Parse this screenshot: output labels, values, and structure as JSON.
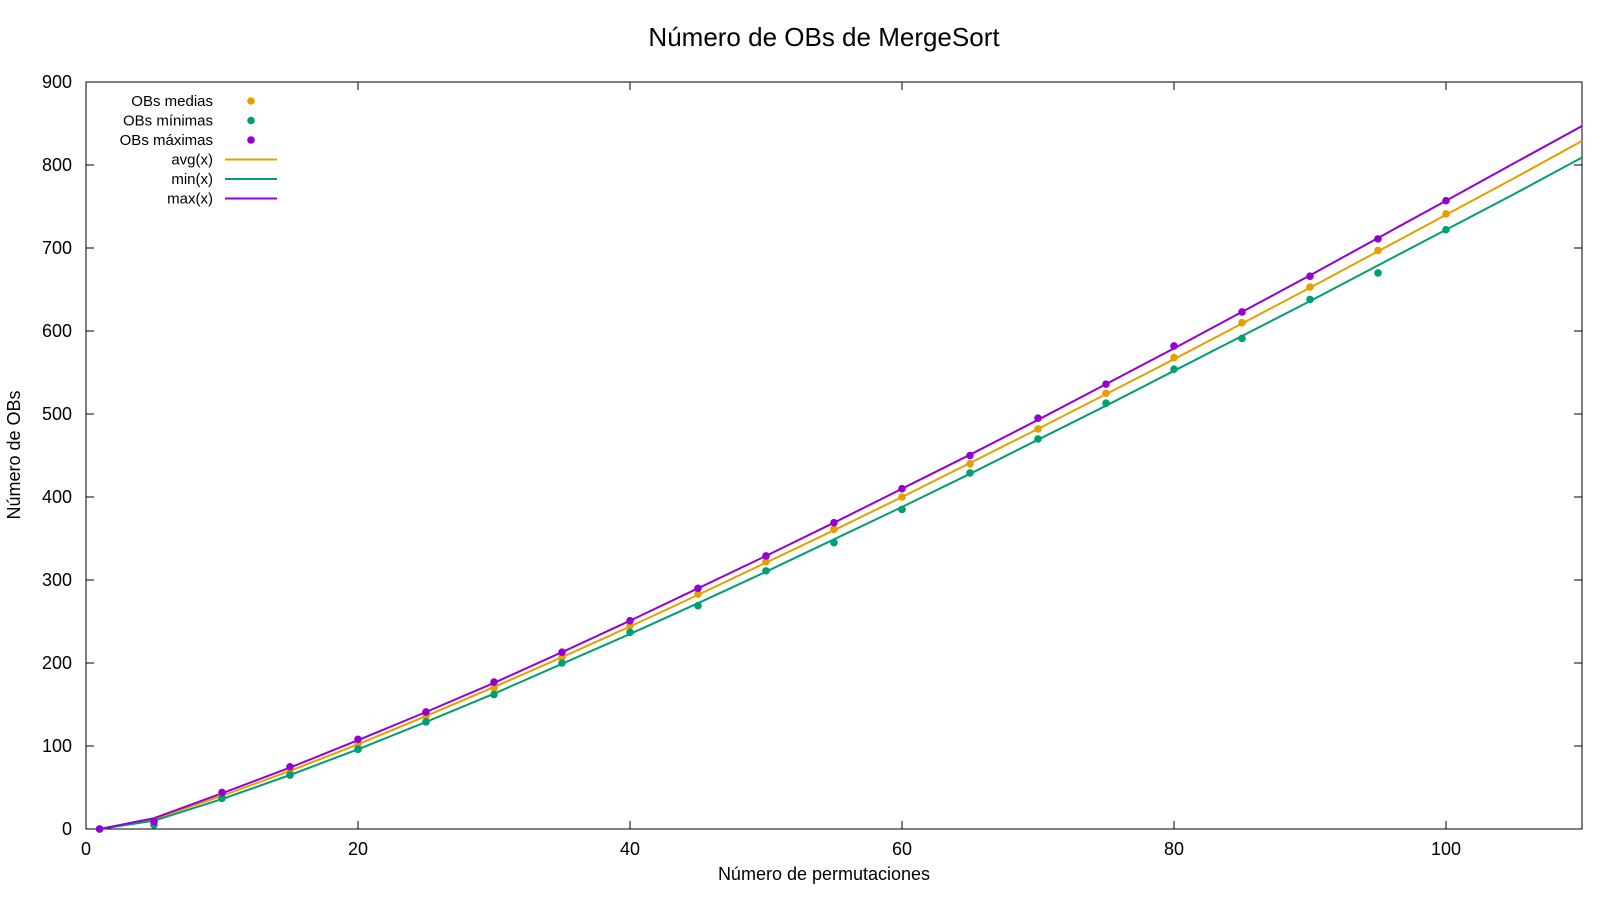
{
  "chart_data": {
    "type": "scatter",
    "title": "Número de OBs de MergeSort",
    "xlabel": "Número de permutaciones",
    "ylabel": "Número de OBs",
    "xlim": [
      0,
      110
    ],
    "ylim": [
      0,
      900
    ],
    "xticks": [
      0,
      20,
      40,
      60,
      80,
      100
    ],
    "yticks": [
      0,
      100,
      200,
      300,
      400,
      500,
      600,
      700,
      800,
      900
    ],
    "grid": false,
    "legend_position": "top-left",
    "x": [
      1,
      5,
      10,
      15,
      20,
      25,
      30,
      35,
      40,
      45,
      50,
      55,
      60,
      65,
      70,
      75,
      80,
      85,
      90,
      95,
      100
    ],
    "series": [
      {
        "name": "OBs medias",
        "kind": "points",
        "color": "#e69f00",
        "values": [
          0,
          8,
          41,
          70,
          102,
          136,
          170,
          207,
          245,
          283,
          322,
          361,
          400,
          440,
          482,
          525,
          568,
          610,
          653,
          697,
          741
        ]
      },
      {
        "name": "OBs mínimas",
        "kind": "points",
        "color": "#009e73",
        "values": [
          0,
          5,
          37,
          65,
          96,
          129,
          162,
          200,
          237,
          269,
          311,
          345,
          385,
          429,
          470,
          513,
          554,
          591,
          638,
          670,
          722
        ]
      },
      {
        "name": "OBs máximas",
        "kind": "points",
        "color": "#9400d3",
        "values": [
          0,
          9,
          44,
          75,
          108,
          141,
          177,
          213,
          251,
          290,
          329,
          369,
          410,
          450,
          495,
          536,
          582,
          623,
          666,
          711,
          757
        ]
      },
      {
        "name": "avg(x)",
        "kind": "line",
        "color": "#e69f00",
        "x": [
          1,
          5,
          10,
          15,
          20,
          25,
          30,
          35,
          40,
          45,
          50,
          55,
          60,
          65,
          70,
          75,
          80,
          85,
          90,
          95,
          100,
          105,
          110
        ],
        "values": [
          0,
          12,
          40,
          70,
          102,
          136,
          171,
          207,
          244,
          282,
          321,
          360,
          400,
          441,
          482,
          524,
          566,
          609,
          652,
          696,
          740,
          784,
          829
        ]
      },
      {
        "name": "min(x)",
        "kind": "line",
        "color": "#009e73",
        "x": [
          1,
          5,
          10,
          15,
          20,
          25,
          30,
          35,
          40,
          45,
          50,
          55,
          60,
          65,
          70,
          75,
          80,
          85,
          90,
          95,
          100,
          105,
          110
        ],
        "values": [
          0,
          10,
          36,
          65,
          96,
          129,
          163,
          199,
          235,
          272,
          310,
          349,
          388,
          428,
          469,
          510,
          552,
          594,
          636,
          679,
          722,
          765,
          809
        ]
      },
      {
        "name": "max(x)",
        "kind": "line",
        "color": "#9400d3",
        "x": [
          1,
          5,
          10,
          15,
          20,
          25,
          30,
          35,
          40,
          45,
          50,
          55,
          60,
          65,
          70,
          75,
          80,
          85,
          90,
          95,
          100,
          105,
          110
        ],
        "values": [
          0,
          13,
          43,
          74,
          107,
          141,
          176,
          213,
          251,
          290,
          329,
          369,
          410,
          451,
          493,
          536,
          579,
          623,
          667,
          712,
          757,
          802,
          847
        ]
      }
    ]
  }
}
